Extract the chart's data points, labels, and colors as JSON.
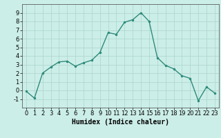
{
  "x": [
    0,
    1,
    2,
    3,
    4,
    5,
    6,
    7,
    8,
    9,
    10,
    11,
    12,
    13,
    14,
    15,
    16,
    17,
    18,
    19,
    20,
    21,
    22,
    23
  ],
  "y": [
    -0.1,
    -0.9,
    2.0,
    2.7,
    3.3,
    3.4,
    2.8,
    3.2,
    3.5,
    4.4,
    6.7,
    6.5,
    7.9,
    8.2,
    9.0,
    8.0,
    3.8,
    2.9,
    2.5,
    1.7,
    1.4,
    -1.2,
    0.4,
    -0.3
  ],
  "line_color": "#2e8b7a",
  "marker": ".",
  "marker_size": 3,
  "bg_color": "#cceee8",
  "grid_color": "#aad4cc",
  "xlabel": "Humidex (Indice chaleur)",
  "ylim": [
    -2,
    10
  ],
  "xlim": [
    -0.5,
    23.5
  ],
  "yticks": [
    -1,
    0,
    1,
    2,
    3,
    4,
    5,
    6,
    7,
    8,
    9
  ],
  "xticks": [
    0,
    1,
    2,
    3,
    4,
    5,
    6,
    7,
    8,
    9,
    10,
    11,
    12,
    13,
    14,
    15,
    16,
    17,
    18,
    19,
    20,
    21,
    22,
    23
  ],
  "xlabel_fontsize": 7,
  "tick_fontsize": 6,
  "line_width": 1.0,
  "bottom_bar_color": "#2e8b7a",
  "bottom_bar_height": 0.13
}
